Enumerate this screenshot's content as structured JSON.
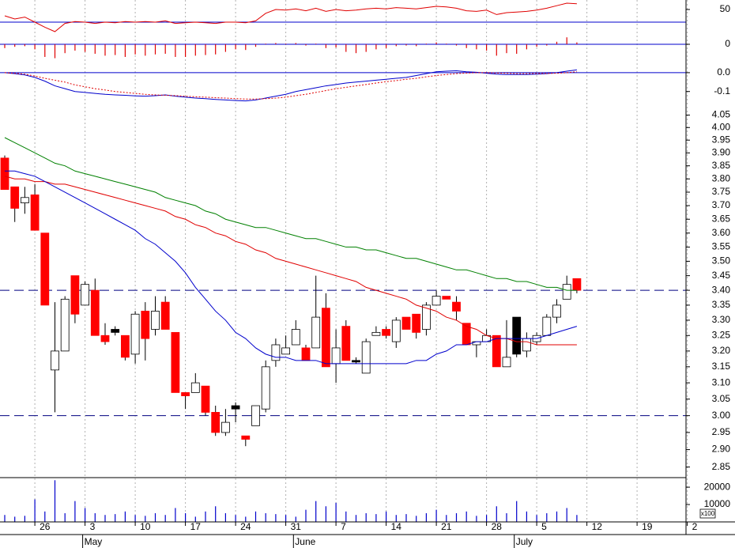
{
  "chart_data": [
    {
      "type": "line",
      "ylim": [
        10,
        65
      ],
      "yticks": [
        50
      ],
      "reference_lines": [
        30
      ],
      "reference_color": "#0000cc",
      "series": [
        {
          "color": "#e00000",
          "values": [
            40,
            35,
            38,
            30,
            22,
            15,
            28,
            31,
            30,
            28,
            30,
            29,
            31,
            30,
            31,
            30,
            32,
            28,
            29,
            30,
            29,
            28,
            30,
            30,
            29,
            32,
            44,
            50,
            49,
            51,
            48,
            52,
            47,
            50,
            48,
            49,
            51,
            52,
            51,
            53,
            52,
            51,
            53,
            55,
            54,
            52,
            48,
            47,
            49,
            42,
            45,
            46,
            47,
            49,
            52,
            56,
            60,
            59,
            null,
            null,
            null,
            null,
            null,
            null,
            null,
            null,
            null,
            null,
            null
          ]
        }
      ]
    },
    {
      "type": "bar",
      "ylim": [
        -0.03,
        0.015
      ],
      "yticks": [
        0
      ],
      "reference_lines": [
        0
      ],
      "reference_color": "#0000cc",
      "color": "#e00000",
      "values": [
        -0.006,
        -0.004,
        -0.003,
        -0.008,
        -0.02,
        -0.022,
        -0.014,
        -0.01,
        -0.012,
        -0.015,
        -0.018,
        -0.017,
        -0.02,
        -0.016,
        -0.018,
        -0.016,
        -0.015,
        -0.02,
        -0.02,
        -0.018,
        -0.017,
        -0.016,
        -0.012,
        -0.008,
        -0.009,
        -0.004,
        0.001,
        0.002,
        0.001,
        0.002,
        -0.002,
        0.001,
        -0.006,
        -0.005,
        -0.012,
        -0.014,
        -0.012,
        -0.008,
        -0.006,
        -0.003,
        -0.002,
        -0.003,
        0.001,
        0.003,
        0.001,
        -0.002,
        -0.006,
        -0.008,
        -0.01,
        -0.018,
        -0.014,
        -0.015,
        -0.008,
        -0.004,
        -0.002,
        0.004,
        0.011,
        0.003,
        null,
        null,
        null,
        null,
        null,
        null,
        null,
        null,
        null,
        null,
        null
      ]
    },
    {
      "type": "line",
      "ylim": [
        -0.16,
        0.05
      ],
      "yticks": [
        {
          "value": 0,
          "label": "0.0"
        },
        -0.1
      ],
      "reference_lines": [
        0
      ],
      "reference_color": "#0000cc",
      "series": [
        {
          "color": "#0000cc",
          "style": "solid",
          "values": [
            0,
            -0.005,
            -0.012,
            -0.025,
            -0.045,
            -0.07,
            -0.085,
            -0.1,
            -0.105,
            -0.11,
            -0.115,
            -0.118,
            -0.12,
            -0.123,
            -0.125,
            -0.122,
            -0.118,
            -0.125,
            -0.13,
            -0.135,
            -0.138,
            -0.142,
            -0.145,
            -0.148,
            -0.15,
            -0.145,
            -0.135,
            -0.125,
            -0.115,
            -0.1,
            -0.09,
            -0.08,
            -0.07,
            -0.063,
            -0.055,
            -0.05,
            -0.045,
            -0.04,
            -0.035,
            -0.03,
            -0.025,
            -0.015,
            -0.005,
            0.005,
            0.008,
            0.01,
            0.005,
            0.002,
            -0.003,
            -0.008,
            -0.01,
            -0.01,
            -0.01,
            -0.008,
            -0.005,
            0,
            0.008,
            0.015,
            null,
            null,
            null,
            null,
            null,
            null,
            null,
            null,
            null,
            null,
            null
          ]
        },
        {
          "color": "#e00000",
          "style": "dotted",
          "values": [
            0,
            -0.003,
            -0.008,
            -0.018,
            -0.03,
            -0.04,
            -0.05,
            -0.065,
            -0.075,
            -0.085,
            -0.092,
            -0.1,
            -0.105,
            -0.11,
            -0.115,
            -0.118,
            -0.12,
            -0.122,
            -0.125,
            -0.128,
            -0.13,
            -0.133,
            -0.135,
            -0.138,
            -0.14,
            -0.14,
            -0.138,
            -0.135,
            -0.13,
            -0.122,
            -0.115,
            -0.105,
            -0.095,
            -0.085,
            -0.078,
            -0.07,
            -0.063,
            -0.055,
            -0.048,
            -0.042,
            -0.035,
            -0.03,
            -0.022,
            -0.015,
            -0.01,
            -0.005,
            -0.002,
            0,
            0,
            -0.002,
            -0.003,
            -0.005,
            -0.005,
            -0.004,
            -0.004,
            -0.003,
            0,
            0.005,
            null,
            null,
            null,
            null,
            null,
            null,
            null,
            null,
            null,
            null,
            null
          ]
        }
      ]
    },
    {
      "type": "candlestick",
      "log_scale": true,
      "ylim": [
        2.82,
        4.1
      ],
      "yticks": [
        4.05,
        {
          "value": 4,
          "label": "4.00"
        },
        3.95,
        {
          "value": 3.9,
          "label": "3.90"
        },
        3.85,
        {
          "value": 3.8,
          "label": "3.80"
        },
        3.75,
        {
          "value": 3.7,
          "label": "3.70"
        },
        3.65,
        {
          "value": 3.6,
          "label": "3.60"
        },
        3.55,
        {
          "value": 3.5,
          "label": "3.50"
        },
        3.45,
        {
          "value": 3.4,
          "label": "3.40"
        },
        3.35,
        {
          "value": 3.3,
          "label": "3.30"
        },
        3.25,
        {
          "value": 3.2,
          "label": "3.20"
        },
        3.15,
        {
          "value": 3.1,
          "label": "3.10"
        },
        3.05,
        {
          "value": 3,
          "label": "3.00"
        },
        2.95,
        {
          "value": 2.9,
          "label": "2.90"
        },
        2.85
      ],
      "reference_lines": [
        3.4,
        3.0
      ],
      "reference_color": "#000080",
      "up_color": "#ffffff",
      "down_color": "#ff0000",
      "hold_color": "#000000",
      "categories": [
        null,
        null,
        null,
        "26",
        null,
        null,
        null,
        null,
        "3",
        null,
        null,
        null,
        null,
        "10",
        null,
        null,
        null,
        null,
        "17",
        null,
        null,
        null,
        null,
        "24",
        null,
        null,
        null,
        null,
        "31",
        null,
        null,
        null,
        null,
        "7",
        null,
        null,
        null,
        null,
        "14",
        null,
        null,
        null,
        null,
        "21",
        null,
        null,
        null,
        null,
        "28",
        null,
        null,
        null,
        null,
        "5",
        null,
        null,
        null,
        null,
        "12",
        null,
        null,
        null,
        null,
        "19",
        null,
        null,
        null,
        null,
        "2"
      ],
      "month_categories": [
        null,
        null,
        null,
        null,
        null,
        null,
        null,
        null,
        "May",
        null,
        null,
        null,
        null,
        null,
        null,
        null,
        null,
        null,
        null,
        null,
        null,
        null,
        null,
        null,
        null,
        null,
        null,
        null,
        null,
        "June",
        null,
        null,
        null,
        null,
        null,
        null,
        null,
        null,
        null,
        null,
        null,
        null,
        null,
        null,
        null,
        null,
        null,
        null,
        null,
        null,
        null,
        "July",
        null,
        null,
        null,
        null,
        null,
        null,
        null,
        null,
        null,
        null,
        null,
        null,
        null,
        null,
        null,
        null,
        null
      ],
      "open": [
        3.88,
        3.77,
        3.71,
        3.74,
        3.6,
        3.14,
        3.2,
        3.45,
        3.35,
        3.4,
        3.25,
        3.27,
        3.25,
        3.19,
        3.33,
        3.27,
        3.36,
        3.26,
        3.07,
        3.07,
        3.09,
        3.01,
        2.95,
        3.03,
        2.94,
        2.97,
        3.02,
        3.17,
        3.19,
        3.22,
        3.21,
        3.21,
        3.34,
        3.16,
        3.28,
        3.17,
        3.13,
        3.25,
        3.27,
        3.23,
        3.31,
        3.32,
        3.27,
        3.35,
        3.38,
        3.36,
        3.29,
        3.22,
        3.23,
        3.25,
        3.15,
        3.31,
        3.2,
        3.23,
        3.25,
        3.31,
        3.37,
        3.44,
        null,
        null,
        null,
        null,
        null,
        null,
        null,
        null,
        null,
        null,
        null
      ],
      "high": [
        3.89,
        3.77,
        3.77,
        3.78,
        3.6,
        3.36,
        3.38,
        3.45,
        3.43,
        3.44,
        3.29,
        3.28,
        3.25,
        3.33,
        3.36,
        3.38,
        3.38,
        3.26,
        3.07,
        3.13,
        3.09,
        3.03,
        3.02,
        3.04,
        2.94,
        3.03,
        3.17,
        3.24,
        3.25,
        3.3,
        3.22,
        3.45,
        3.39,
        3.27,
        3.3,
        3.18,
        3.24,
        3.28,
        3.28,
        3.31,
        3.31,
        3.32,
        3.36,
        3.4,
        3.38,
        3.38,
        3.29,
        3.23,
        3.27,
        3.25,
        3.3,
        3.31,
        3.26,
        3.26,
        3.32,
        3.37,
        3.45,
        3.44,
        null,
        null,
        null,
        null,
        null,
        null,
        null,
        null,
        null,
        null,
        null
      ],
      "low": [
        3.76,
        3.64,
        3.67,
        3.61,
        3.35,
        3.01,
        3.2,
        3.29,
        3.35,
        3.25,
        3.22,
        3.25,
        3.17,
        3.16,
        3.17,
        3.25,
        3.27,
        3.07,
        3.02,
        3.07,
        3.0,
        2.94,
        2.94,
        2.98,
        2.91,
        2.97,
        3.01,
        3.15,
        3.19,
        3.22,
        3.17,
        3.21,
        3.15,
        3.1,
        3.17,
        3.16,
        3.13,
        3.25,
        3.24,
        3.21,
        3.27,
        3.24,
        3.25,
        3.35,
        3.37,
        3.3,
        3.22,
        3.18,
        3.23,
        3.15,
        3.15,
        3.18,
        3.18,
        3.22,
        3.25,
        3.29,
        3.37,
        3.39,
        null,
        null,
        null,
        null,
        null,
        null,
        null,
        null,
        null,
        null,
        null
      ],
      "close": [
        3.76,
        3.69,
        3.73,
        3.61,
        3.35,
        3.2,
        3.37,
        3.32,
        3.42,
        3.25,
        3.23,
        3.26,
        3.18,
        3.32,
        3.24,
        3.33,
        3.27,
        3.07,
        3.06,
        3.1,
        3.01,
        2.95,
        2.98,
        3.02,
        2.93,
        3.03,
        3.15,
        3.22,
        3.21,
        3.27,
        3.17,
        3.31,
        3.15,
        3.21,
        3.17,
        3.17,
        3.23,
        3.26,
        3.25,
        3.3,
        3.27,
        3.26,
        3.35,
        3.38,
        3.37,
        3.33,
        3.22,
        3.23,
        3.25,
        3.15,
        3.18,
        3.19,
        3.24,
        3.25,
        3.31,
        3.35,
        3.42,
        3.4,
        null,
        null,
        null,
        null,
        null,
        null,
        null,
        null,
        null,
        null,
        null
      ],
      "series": [
        {
          "color": "#008000",
          "values": [
            3.96,
            3.94,
            3.92,
            3.9,
            3.88,
            3.86,
            3.85,
            3.83,
            3.82,
            3.81,
            3.8,
            3.79,
            3.78,
            3.77,
            3.76,
            3.75,
            3.73,
            3.72,
            3.71,
            3.7,
            3.68,
            3.67,
            3.65,
            3.64,
            3.63,
            3.62,
            3.62,
            3.61,
            3.6,
            3.59,
            3.58,
            3.58,
            3.57,
            3.56,
            3.55,
            3.55,
            3.54,
            3.54,
            3.53,
            3.52,
            3.51,
            3.51,
            3.5,
            3.49,
            3.48,
            3.47,
            3.47,
            3.46,
            3.45,
            3.44,
            3.44,
            3.43,
            3.43,
            3.42,
            3.41,
            3.41,
            3.4,
            3.4,
            null,
            null,
            null,
            null,
            null,
            null,
            null,
            null,
            null,
            null,
            null
          ]
        },
        {
          "color": "#e00000",
          "values": [
            3.81,
            3.8,
            3.8,
            3.79,
            3.79,
            3.78,
            3.78,
            3.77,
            3.76,
            3.75,
            3.74,
            3.73,
            3.72,
            3.71,
            3.7,
            3.69,
            3.68,
            3.66,
            3.65,
            3.63,
            3.62,
            3.6,
            3.59,
            3.57,
            3.56,
            3.54,
            3.53,
            3.51,
            3.5,
            3.49,
            3.48,
            3.47,
            3.46,
            3.45,
            3.44,
            3.43,
            3.41,
            3.4,
            3.39,
            3.38,
            3.37,
            3.35,
            3.34,
            3.33,
            3.31,
            3.3,
            3.28,
            3.27,
            3.25,
            3.24,
            3.24,
            3.23,
            3.23,
            3.22,
            3.22,
            3.22,
            3.22,
            3.22,
            null,
            null,
            null,
            null,
            null,
            null,
            null,
            null,
            null,
            null,
            null
          ]
        },
        {
          "color": "#0000cc",
          "values": [
            3.83,
            3.83,
            3.82,
            3.81,
            3.79,
            3.77,
            3.75,
            3.73,
            3.71,
            3.69,
            3.67,
            3.65,
            3.63,
            3.61,
            3.58,
            3.56,
            3.53,
            3.5,
            3.46,
            3.41,
            3.37,
            3.33,
            3.3,
            3.26,
            3.24,
            3.21,
            3.19,
            3.18,
            3.18,
            3.17,
            3.17,
            3.17,
            3.16,
            3.16,
            3.16,
            3.16,
            3.16,
            3.16,
            3.16,
            3.16,
            3.16,
            3.17,
            3.17,
            3.19,
            3.2,
            3.22,
            3.22,
            3.23,
            3.23,
            3.24,
            3.24,
            3.24,
            3.24,
            3.24,
            3.25,
            3.26,
            3.27,
            3.28,
            null,
            null,
            null,
            null,
            null,
            null,
            null,
            null,
            null,
            null,
            null
          ]
        }
      ]
    },
    {
      "type": "bar",
      "ylim": [
        0,
        25500
      ],
      "yticks": [
        10000,
        20000
      ],
      "unit_label": "x100",
      "color": "#0000cc",
      "values": [
        4000,
        3000,
        3500,
        13000,
        6000,
        24000,
        5000,
        12000,
        8000,
        5000,
        4000,
        4500,
        6000,
        4000,
        3500,
        5000,
        4000,
        8000,
        5000,
        3000,
        6000,
        9000,
        5000,
        4000,
        3000,
        6000,
        5000,
        4500,
        4000,
        3000,
        7000,
        12000,
        9000,
        11000,
        6000,
        4000,
        5000,
        4500,
        6000,
        4000,
        4500,
        3500,
        5000,
        7000,
        4000,
        5000,
        6000,
        3500,
        4000,
        9000,
        5000,
        12000,
        6000,
        4000,
        5000,
        6000,
        8000,
        4000,
        null,
        null,
        null,
        null,
        null,
        null,
        null,
        null,
        null,
        null,
        null
      ]
    }
  ]
}
